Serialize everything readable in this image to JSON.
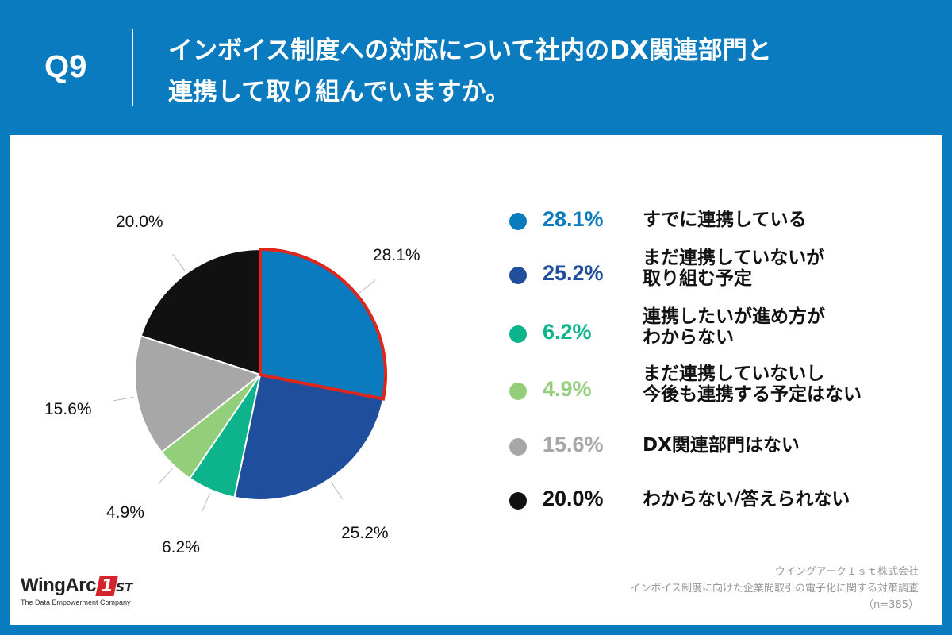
{
  "header": {
    "q_label": "Q9",
    "title_line1": "インボイス制度への対応について社内のDX関連部門と",
    "title_line2": "連携して取り組んでいますか。"
  },
  "chart_data": {
    "type": "pie",
    "start": "12 o'clock, clockwise",
    "highlight_index": 0,
    "highlight_color": "#e0251b",
    "slices": [
      {
        "label": "すでに連携している",
        "value": 28.1,
        "display": "28.1%",
        "color": "#0a7bbf"
      },
      {
        "label_line1": "まだ連携していないが",
        "label_line2": "取り組む予定",
        "value": 25.2,
        "display": "25.2%",
        "color": "#1f4e9c"
      },
      {
        "label_line1": "連携したいが進め方が",
        "label_line2": "わからない",
        "value": 6.2,
        "display": "6.2%",
        "color": "#0db38a"
      },
      {
        "label_line1": "まだ連携していないし",
        "label_line2": "今後も連携する予定はない",
        "value": 4.9,
        "display": "4.9%",
        "color": "#93cf7a"
      },
      {
        "label": "DX関連部門はない",
        "value": 15.6,
        "display": "15.6%",
        "color": "#a7a7a7"
      },
      {
        "label": "わからない/答えられない",
        "value": 20.0,
        "display": "20.0%",
        "color": "#111111"
      }
    ]
  },
  "logo": {
    "word": "WingArc",
    "mark": "1",
    "suffix": "ST",
    "tagline": "The Data Empowerment Company"
  },
  "source": {
    "line1": "ウイングアーク１ｓｔ株式会社",
    "line2": "インボイス制度に向けた企業間取引の電子化に関する対策調査",
    "line3": "（n=385）"
  }
}
